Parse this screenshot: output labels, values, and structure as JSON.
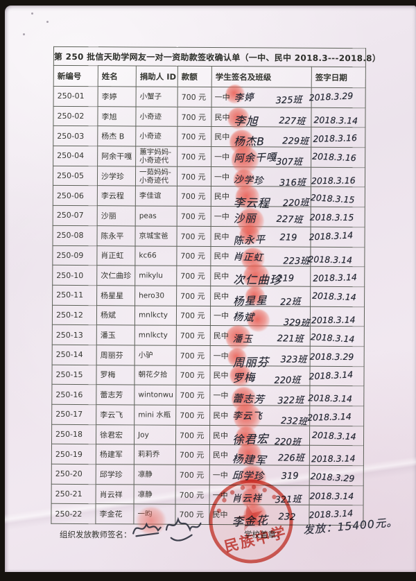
{
  "document": {
    "title": "第 250 批信天助学网友一对一资助款签收确认单（一中、民中 2018.3---2018.8）",
    "table": {
      "columns": [
        "新编号",
        "姓名",
        "捐助人 ID",
        "款额",
        "学生签名及班级",
        "签字日期"
      ],
      "rows": [
        {
          "id": "250-01",
          "name": "李婷",
          "donor": "小蟹子",
          "amount": "700 元",
          "school": "一中",
          "signature": "李婷",
          "class_no": "325班",
          "date": "2018.3.29"
        },
        {
          "id": "250-02",
          "name": "李旭",
          "donor": "小奇迹",
          "amount": "700 元",
          "school": "民中",
          "signature": "李旭",
          "class_no": "227班",
          "date": "2018.3.14"
        },
        {
          "id": "250-03",
          "name": "杨杰 B",
          "donor": "小奇迹",
          "amount": "700 元",
          "school": "民中",
          "signature": "杨杰B",
          "class_no": "229班",
          "date": "2018.3.16"
        },
        {
          "id": "250-04",
          "name": "阿余干嘎",
          "donor": "蕙宇妈妈-小奇迹代",
          "amount": "700 元",
          "school": "一中",
          "signature": "阿余干嘎",
          "class_no": "307班",
          "date": "2018.3.16"
        },
        {
          "id": "250-05",
          "name": "沙学珍",
          "donor": "一茹妈妈-小奇迹代",
          "amount": "700 元",
          "school": "一中",
          "signature": "沙学珍",
          "class_no": "316班",
          "date": "2018.3.16"
        },
        {
          "id": "250-06",
          "name": "李云程",
          "donor": "李佳谊",
          "amount": "700 元",
          "school": "民中",
          "signature": "李云程",
          "class_no": "220班",
          "date": "2018.3.15"
        },
        {
          "id": "250-07",
          "name": "沙丽",
          "donor": "peas",
          "amount": "700 元",
          "school": "一中",
          "signature": "沙丽",
          "class_no": "227班",
          "date": "2018.3.15"
        },
        {
          "id": "250-08",
          "name": "陈永平",
          "donor": "京城宝爸",
          "amount": "700 元",
          "school": "民中",
          "signature": "陈永平",
          "class_no": "219",
          "date": "2018.3.14"
        },
        {
          "id": "250-09",
          "name": "肖正虹",
          "donor": "kc66",
          "amount": "700 元",
          "school": "民中",
          "signature": "肖正虹",
          "class_no": "223班",
          "date": "2018.3.14"
        },
        {
          "id": "250-10",
          "name": "次仁曲珍",
          "donor": "mikylu",
          "amount": "700 元",
          "school": "民中",
          "signature": "次仁曲珍",
          "class_no": "219",
          "date": "2018.3.14"
        },
        {
          "id": "250-11",
          "name": "杨星星",
          "donor": "hero30",
          "amount": "700 元",
          "school": "民中",
          "signature": "杨星星",
          "class_no": "22班",
          "date": "2018.3.14"
        },
        {
          "id": "250-12",
          "name": "杨斌",
          "donor": "mnlkcty",
          "amount": "700 元",
          "school": "一中",
          "signature": "杨斌",
          "class_no": "329班",
          "date": "2018.3.14"
        },
        {
          "id": "250-13",
          "name": "潘玉",
          "donor": "mnlkcty",
          "amount": "700 元",
          "school": "民中",
          "signature": "潘玉",
          "class_no": "221班",
          "date": "2018.3.14"
        },
        {
          "id": "250-14",
          "name": "周丽芬",
          "donor": "小驴",
          "amount": "700 元",
          "school": "一中",
          "signature": "周丽芬",
          "class_no": "323班",
          "date": "2018.3.29"
        },
        {
          "id": "250-15",
          "name": "罗梅",
          "donor": "朝花夕拾",
          "amount": "700 元",
          "school": "民中",
          "signature": "罗梅",
          "class_no": "220班",
          "date": "2018.3.14"
        },
        {
          "id": "250-16",
          "name": "蕾志芳",
          "donor": "wintonwu",
          "amount": "700 元",
          "school": "一中",
          "signature": "蕾志芳",
          "class_no": "322班",
          "date": "2018.3.14"
        },
        {
          "id": "250-17",
          "name": "李云飞",
          "donor": "mini 水瓶",
          "amount": "700 元",
          "school": "民中",
          "signature": "李云飞",
          "class_no": "232班",
          "date": "2018.3.14"
        },
        {
          "id": "250-18",
          "name": "徐君宏",
          "donor": "Joy",
          "amount": "700 元",
          "school": "民中",
          "signature": "徐君宏",
          "class_no": "220班",
          "date": "2018.3.14"
        },
        {
          "id": "250-19",
          "name": "杨建军",
          "donor": "莉莉乔",
          "amount": "700 元",
          "school": "民中",
          "signature": "杨建军",
          "class_no": "226班",
          "date": "2018.3.14"
        },
        {
          "id": "250-20",
          "name": "邱学珍",
          "donor": "凛静",
          "amount": "700 元",
          "school": "一中",
          "signature": "邱学珍",
          "class_no": "319",
          "date": "2018.3.29"
        },
        {
          "id": "250-21",
          "name": "肖云祥",
          "donor": "凛静",
          "amount": "700 元",
          "school": "一中",
          "signature": "肖云祥",
          "class_no": "321班",
          "date": "2018.3.14"
        },
        {
          "id": "250-22",
          "name": "李金花",
          "donor": "一昀",
          "amount": "700 元",
          "school": "民中",
          "signature": "李金花",
          "class_no": "232",
          "date": "2018.3.14"
        }
      ]
    },
    "footer": {
      "teacher_sign_label": "组织发放教师签名：",
      "school_stamp_label": "学校盖章：",
      "stamp_text": "民族中学",
      "issued_note": "发放：15400元。"
    },
    "colors": {
      "ink": "#232732",
      "stamp_red": "#d0392c",
      "fingerprint_red": "#e84c40",
      "paper": "#f0e8ef",
      "border": "#5c6158"
    }
  }
}
